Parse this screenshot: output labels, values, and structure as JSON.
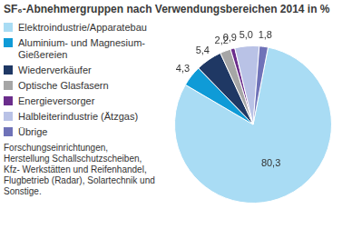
{
  "chart_data": {
    "type": "pie",
    "title": "SF₆-Abnehmergruppen nach Verwendungsbereichen 2014 in %",
    "categories": [
      "Elektroindustrie/Apparatebau",
      "Aluminium- und Magnesium-Gießereien",
      "Wiederverkäufer",
      "Optische Glasfasern",
      "Energieversorger",
      "Halbleiterindustrie (Ätzgas)",
      "Übrige"
    ],
    "values": [
      80.3,
      4.3,
      5.4,
      2.2,
      0.9,
      5.0,
      1.8
    ],
    "value_labels": [
      "80,3",
      "4,3",
      "5,4",
      "2,2",
      "0,9",
      "5,0",
      "1,8"
    ],
    "colors": [
      "#a9dcf4",
      "#0f9bd7",
      "#1f3864",
      "#a6a6a6",
      "#6b2d8c",
      "#b9c2e6",
      "#6f72b8"
    ],
    "legend": "left",
    "data_labels": true,
    "annotation": "Forschungseinrichtungen, Herstellung Schallschutzscheiben, Kfz- Werkstätten und Reifenhandel, Flugbetrieb (Radar), Solartechnik und Sonstige."
  }
}
